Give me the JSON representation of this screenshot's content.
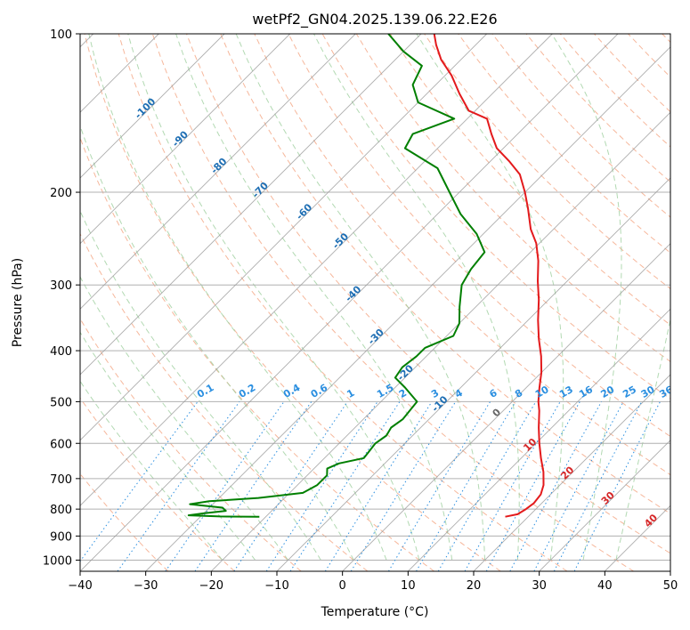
{
  "chart_data": {
    "type": "line",
    "title": "wetPf2_GN04.2025.139.06.22.E26",
    "xlabel": "Temperature (°C)",
    "ylabel": "Pressure (hPa)",
    "xlim": [
      -40,
      50
    ],
    "ylim": [
      1050,
      100
    ],
    "y_scale": "log",
    "grid": true,
    "x_ticks": [
      -40,
      -30,
      -20,
      -10,
      0,
      10,
      20,
      30,
      40,
      50
    ],
    "y_ticks": [
      100,
      200,
      300,
      400,
      500,
      600,
      700,
      800,
      900,
      1000
    ],
    "skew_diagram": true,
    "isotherm_labels": [
      -100,
      -90,
      -80,
      -70,
      -60,
      -50,
      -40,
      -30,
      -20,
      -10,
      0,
      10,
      20,
      30,
      40
    ],
    "mixing_ratio_labels": [
      "0.1",
      "0.2",
      "0.4",
      "0.6",
      "1",
      "1.5",
      "2",
      "3",
      "4",
      "6",
      "8",
      "10",
      "13",
      "16",
      "20",
      "25",
      "30",
      "36"
    ],
    "series": [
      {
        "color": "#e31a1c",
        "points": [
          [
            16.5,
            827
          ],
          [
            18.0,
            818
          ],
          [
            18.5,
            800
          ],
          [
            18.8,
            780
          ],
          [
            18.5,
            750
          ],
          [
            17.5,
            720
          ],
          [
            15.5,
            680
          ],
          [
            13.0,
            640
          ],
          [
            10.5,
            600
          ],
          [
            8.0,
            560
          ],
          [
            5.5,
            520
          ],
          [
            4.0,
            500
          ],
          [
            2.0,
            470
          ],
          [
            0.0,
            440
          ],
          [
            -2.5,
            410
          ],
          [
            -5.5,
            380
          ],
          [
            -8.5,
            350
          ],
          [
            -11.5,
            320
          ],
          [
            -14.5,
            295
          ],
          [
            -17.5,
            270
          ],
          [
            -20.5,
            250
          ],
          [
            -23.5,
            235
          ],
          [
            -27.0,
            215
          ],
          [
            -30.0,
            200
          ],
          [
            -33.5,
            185
          ],
          [
            -37.0,
            175
          ],
          [
            -41.0,
            165
          ],
          [
            -44.0,
            155
          ],
          [
            -47.0,
            145
          ],
          [
            -51.0,
            140
          ],
          [
            -55.0,
            130
          ],
          [
            -59.0,
            120
          ],
          [
            -63.0,
            112
          ],
          [
            -66.0,
            105
          ],
          [
            -68.0,
            100
          ]
        ]
      },
      {
        "color": "#007f00",
        "points": [
          [
            -21.0,
            827
          ],
          [
            -27.0,
            826
          ],
          [
            -32.0,
            822
          ],
          [
            -30.0,
            815
          ],
          [
            -27.0,
            806
          ],
          [
            -28.0,
            795
          ],
          [
            -33.5,
            783
          ],
          [
            -31.0,
            773
          ],
          [
            -24.0,
            762
          ],
          [
            -18.0,
            745
          ],
          [
            -17.0,
            720
          ],
          [
            -17.0,
            690
          ],
          [
            -18.0,
            670
          ],
          [
            -17.0,
            655
          ],
          [
            -14.0,
            640
          ],
          [
            -14.5,
            600
          ],
          [
            -14.0,
            580
          ],
          [
            -14.5,
            560
          ],
          [
            -14.0,
            540
          ],
          [
            -14.5,
            500
          ],
          [
            -18.5,
            470
          ],
          [
            -21.5,
            450
          ],
          [
            -22.0,
            430
          ],
          [
            -21.5,
            410
          ],
          [
            -21.5,
            395
          ],
          [
            -19.0,
            375
          ],
          [
            -20.0,
            355
          ],
          [
            -22.5,
            330
          ],
          [
            -25.5,
            300
          ],
          [
            -26.5,
            280
          ],
          [
            -27.0,
            260
          ],
          [
            -31.0,
            240
          ],
          [
            -36.5,
            220
          ],
          [
            -41.5,
            200
          ],
          [
            -47.0,
            180
          ],
          [
            -55.0,
            165
          ],
          [
            -56.0,
            155
          ],
          [
            -52.0,
            145
          ],
          [
            -60.0,
            135
          ],
          [
            -63.5,
            125
          ],
          [
            -65.0,
            115
          ],
          [
            -70.0,
            108
          ],
          [
            -75.0,
            100
          ]
        ]
      }
    ]
  }
}
